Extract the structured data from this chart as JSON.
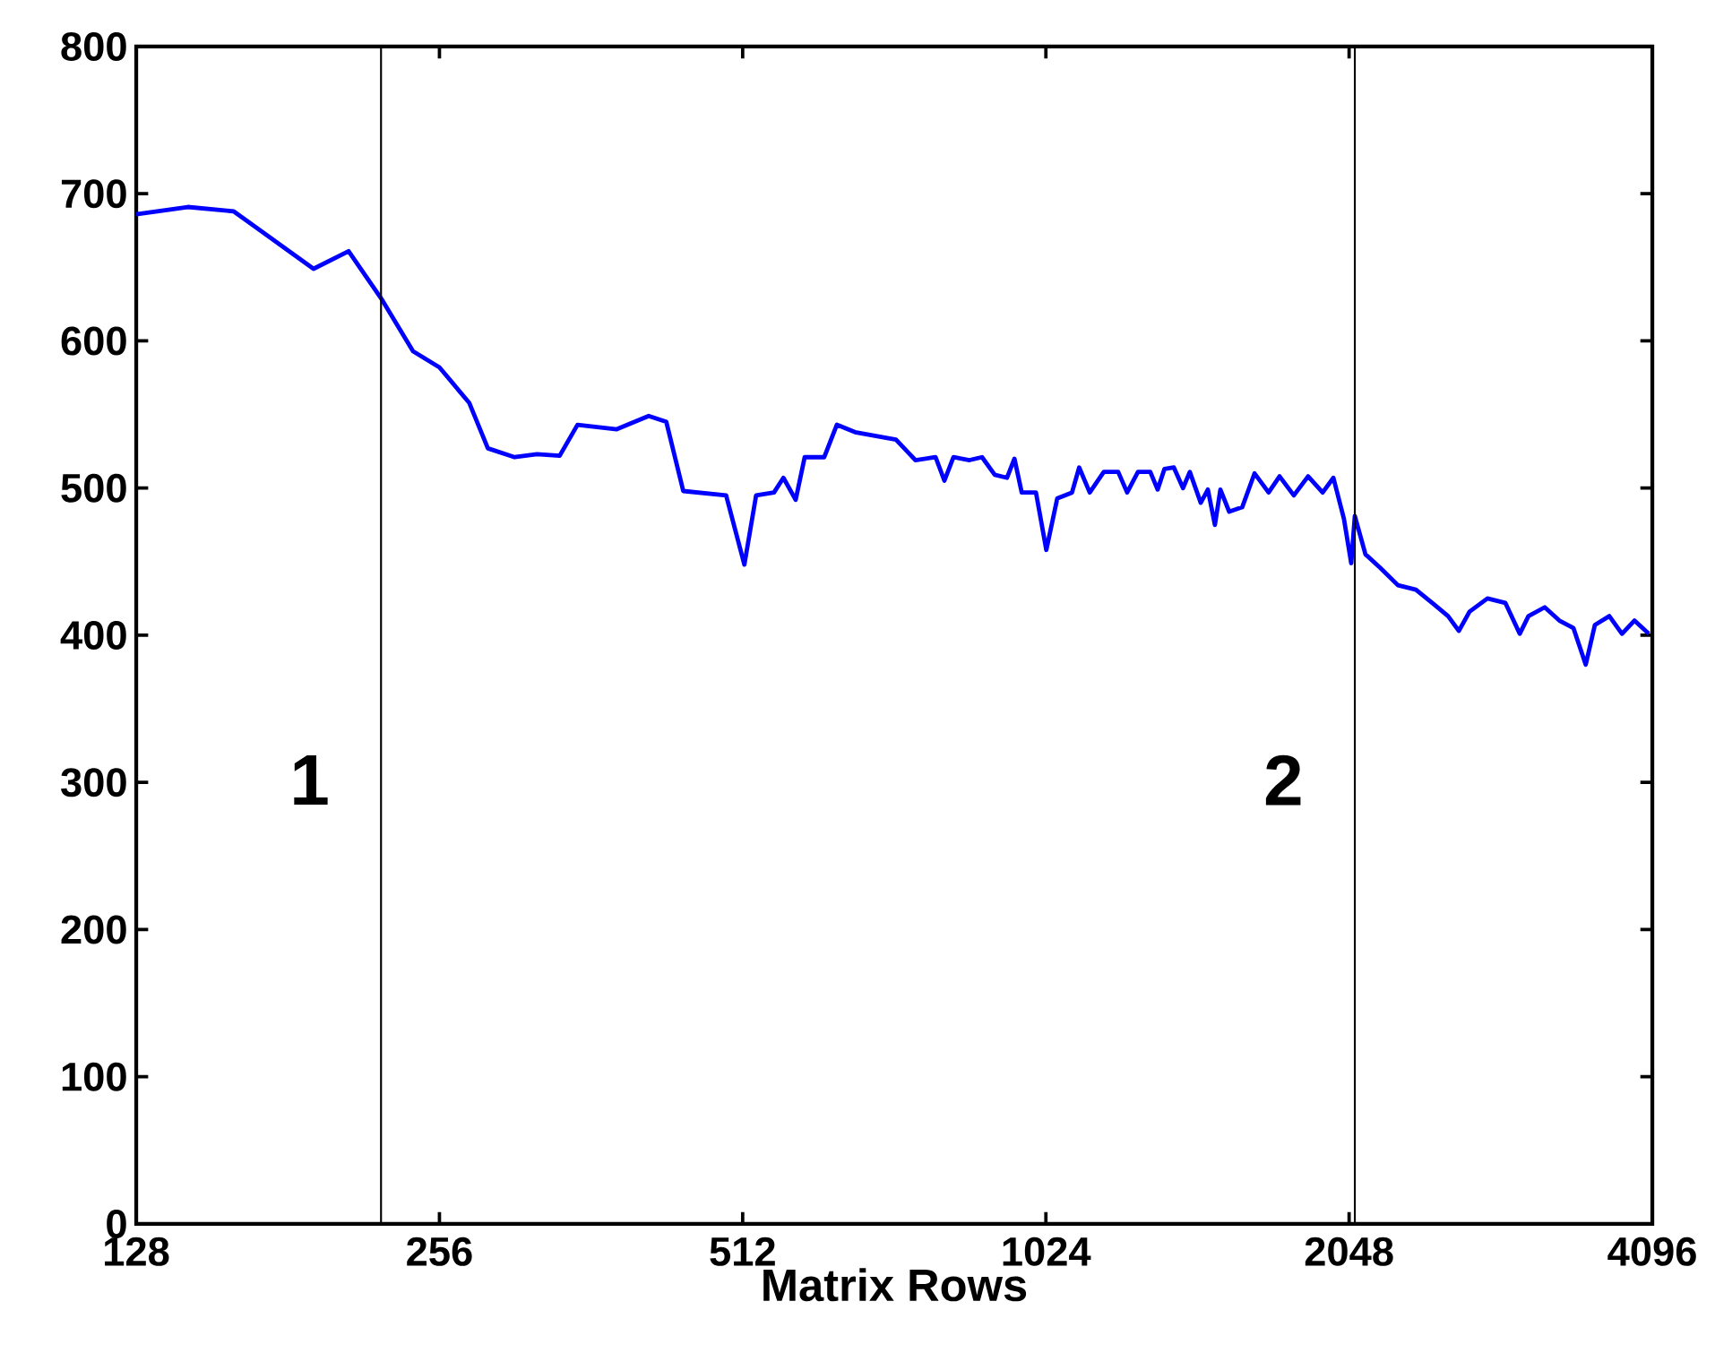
{
  "chart_data": {
    "type": "line",
    "xlabel": "Matrix Rows",
    "log": "x",
    "xlim": [
      128,
      4096
    ],
    "xticks": [
      128,
      256,
      512,
      1024,
      2048,
      4096
    ],
    "ylim": [
      0,
      800
    ],
    "yticks": [
      0,
      100,
      200,
      300,
      400,
      500,
      600,
      700,
      800
    ],
    "grid": false,
    "marker": "none",
    "line_style": "solid",
    "ref_lines": [
      {
        "axis": "x",
        "value": 224,
        "color": "#000000"
      },
      {
        "axis": "x",
        "value": 2075,
        "color": "#000000"
      }
    ],
    "annotations": [
      "1",
      "2"
    ],
    "series": [
      {
        "color": "#0000ff",
        "x": [
          128,
          144,
          160,
          192,
          208,
          224,
          241,
          256,
          274,
          286,
          304,
          320,
          337,
          351,
          384,
          413,
          430,
          447,
          493,
          514,
          528,
          550,
          562,
          578,
          590,
          617,
          635,
          662,
          727,
          760,
          796,
          812,
          829,
          860,
          885,
          911,
          937,
          953,
          969,
          1001,
          1025,
          1051,
          1087,
          1105,
          1132,
          1169,
          1208,
          1233,
          1264,
          1300,
          1322,
          1343,
          1372,
          1401,
          1423,
          1459,
          1483,
          1507,
          1526,
          1557,
          1604,
          1650,
          1704,
          1747,
          1805,
          1865,
          1928,
          1976,
          2024,
          2058,
          2075,
          2126,
          2198,
          2290,
          2386,
          2486,
          2568,
          2632,
          2697,
          2810,
          2927,
          3025,
          3086,
          3203,
          3312,
          3420,
          3518,
          3592,
          3713,
          3822,
          3932,
          4063
        ],
        "values": [
          686,
          691,
          688,
          649,
          661,
          629,
          593,
          582,
          558,
          527,
          521,
          523,
          522,
          543,
          540,
          549,
          545,
          498,
          495,
          448,
          495,
          497,
          507,
          492,
          521,
          521,
          543,
          538,
          533,
          519,
          521,
          505,
          521,
          519,
          521,
          509,
          507,
          520,
          497,
          497,
          458,
          493,
          497,
          514,
          497,
          511,
          511,
          497,
          511,
          511,
          499,
          513,
          514,
          500,
          511,
          490,
          499,
          475,
          499,
          484,
          487,
          510,
          497,
          508,
          495,
          508,
          497,
          507,
          479,
          449,
          481,
          455,
          446,
          434,
          431,
          421,
          413,
          403,
          416,
          425,
          422,
          401,
          413,
          419,
          410,
          405,
          380,
          407,
          413,
          401,
          410,
          401
        ]
      }
    ]
  }
}
